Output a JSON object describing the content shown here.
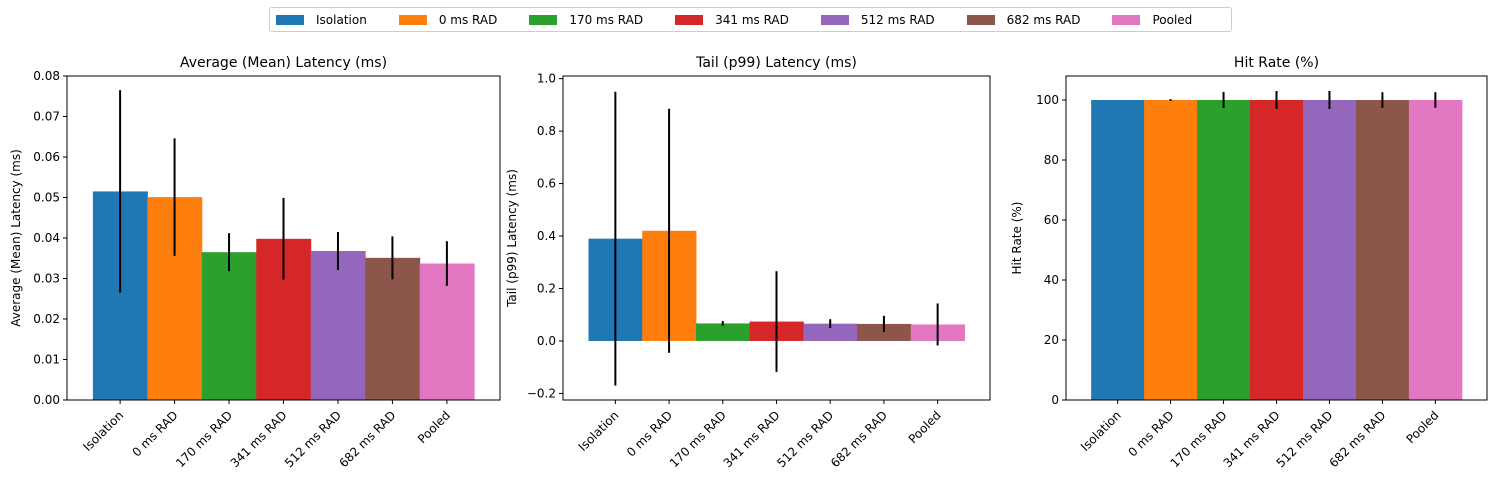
{
  "legend": [
    {
      "label": "Isolation",
      "color": "#1f77b4"
    },
    {
      "label": "0 ms RAD",
      "color": "#ff7f0e"
    },
    {
      "label": "170 ms RAD",
      "color": "#2ca02c"
    },
    {
      "label": "341 ms RAD",
      "color": "#d62728"
    },
    {
      "label": "512 ms RAD",
      "color": "#9467bd"
    },
    {
      "label": "682 ms RAD",
      "color": "#8c564b"
    },
    {
      "label": "Pooled",
      "color": "#e377c2"
    }
  ],
  "chart_data": [
    {
      "type": "bar",
      "title": "Average (Mean) Latency (ms)",
      "xlabel": "",
      "ylabel": "Average (Mean) Latency (ms)",
      "categories": [
        "Isolation",
        "0 ms RAD",
        "170 ms RAD",
        "341 ms RAD",
        "512 ms RAD",
        "682 ms RAD",
        "Pooled"
      ],
      "values": [
        0.0515,
        0.0501,
        0.0365,
        0.0398,
        0.0368,
        0.0351,
        0.0337
      ],
      "errors": [
        0.025,
        0.0145,
        0.0047,
        0.0101,
        0.0047,
        0.0053,
        0.0055
      ],
      "ylim": [
        0,
        0.08
      ],
      "yticks": [
        0.0,
        0.01,
        0.02,
        0.03,
        0.04,
        0.05,
        0.06,
        0.07,
        0.08
      ],
      "ytick_labels": [
        "0.00",
        "0.01",
        "0.02",
        "0.03",
        "0.04",
        "0.05",
        "0.06",
        "0.07",
        "0.08"
      ]
    },
    {
      "type": "bar",
      "title": "Tail (p99) Latency (ms)",
      "xlabel": "",
      "ylabel": "Tail (p99) Latency (ms)",
      "categories": [
        "Isolation",
        "0 ms RAD",
        "170 ms RAD",
        "341 ms RAD",
        "512 ms RAD",
        "682 ms RAD",
        "Pooled"
      ],
      "values": [
        0.39,
        0.42,
        0.067,
        0.074,
        0.066,
        0.065,
        0.063
      ],
      "errors": [
        0.56,
        0.465,
        0.009,
        0.192,
        0.017,
        0.031,
        0.08
      ],
      "ylim": [
        -0.225,
        1.01
      ],
      "yticks": [
        -0.2,
        0.0,
        0.2,
        0.4,
        0.6,
        0.8,
        1.0
      ],
      "ytick_labels": [
        "−0.2",
        "0.0",
        "0.2",
        "0.4",
        "0.6",
        "0.8",
        "1.0"
      ]
    },
    {
      "type": "bar",
      "title": "Hit Rate (%)",
      "xlabel": "",
      "ylabel": "Hit Rate (%)",
      "categories": [
        "Isolation",
        "0 ms RAD",
        "170 ms RAD",
        "341 ms RAD",
        "512 ms RAD",
        "682 ms RAD",
        "Pooled"
      ],
      "values": [
        100,
        100,
        100,
        100,
        100,
        100,
        100
      ],
      "errors": [
        0,
        0.3,
        2.7,
        3.0,
        3.0,
        2.6,
        2.6
      ],
      "ylim": [
        0,
        108
      ],
      "yticks": [
        0,
        20,
        40,
        60,
        80,
        100
      ],
      "ytick_labels": [
        "0",
        "20",
        "40",
        "60",
        "80",
        "100"
      ]
    }
  ]
}
